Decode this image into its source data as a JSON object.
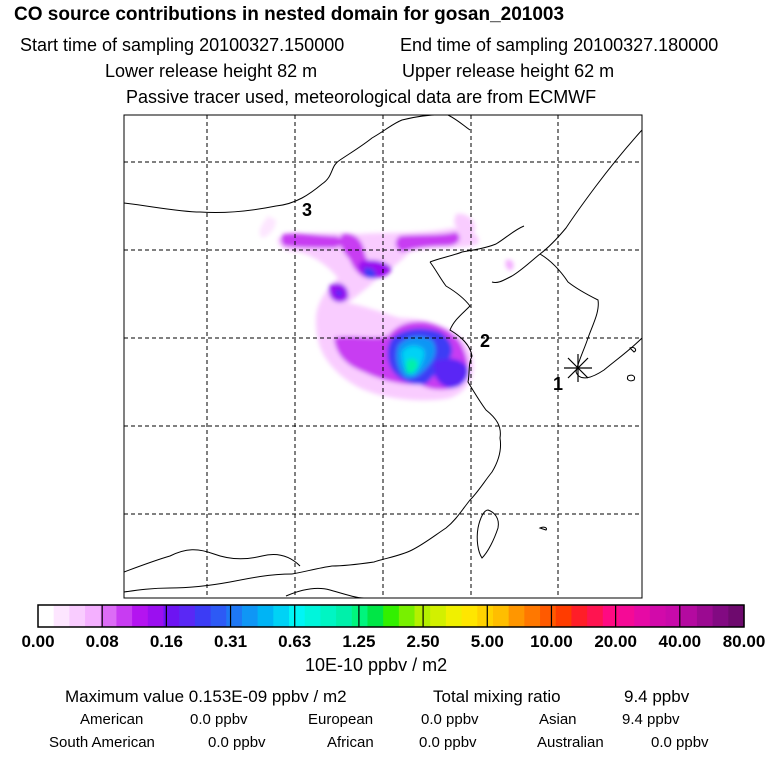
{
  "header": {
    "title": "CO  source contributions in nested domain for gosan_201003",
    "start_label": "Start time of sampling 20100327.150000",
    "end_label": "End time of sampling 20100327.180000",
    "lower_label": "Lower release height   82 m",
    "upper_label": "Upper release height   62 m",
    "tracer_label": "Passive tracer used, meteorological data are from ECMWF"
  },
  "map": {
    "markers": [
      {
        "label": "1"
      },
      {
        "label": "2"
      },
      {
        "label": "3"
      }
    ],
    "receptor_icon": "asterisk-icon"
  },
  "colorbar": {
    "ticks": [
      "0.00",
      "0.08",
      "0.16",
      "0.31",
      "0.63",
      "1.25",
      "2.50",
      "5.00",
      "10.00",
      "20.00",
      "40.00",
      "80.00"
    ],
    "unit": "10E-10 ppbv / m2",
    "colors": [
      "#ffffff",
      "#fde6ff",
      "#f9ccff",
      "#f4b0ff",
      "#dc6cf6",
      "#c83cf2",
      "#b414f0",
      "#9b0ff0",
      "#6d14f2",
      "#5a28f5",
      "#3c3cf5",
      "#2d5af5",
      "#1e78f5",
      "#0f96f5",
      "#00b4f5",
      "#00d2f5",
      "#00f5f5",
      "#00f5dc",
      "#00f5c3",
      "#00f0aa",
      "#00f57d",
      "#00e646",
      "#32f000",
      "#78f000",
      "#b4f000",
      "#d2f000",
      "#f0f000",
      "#ffe600",
      "#ffd200",
      "#ffbe00",
      "#ff9600",
      "#ff7800",
      "#ff5a00",
      "#ff3c00",
      "#ff1e28",
      "#ff1450",
      "#ff0a82",
      "#f50a96",
      "#e60aa5",
      "#d20aaa",
      "#c80aaa",
      "#b40aa0",
      "#9b0a91",
      "#820a82",
      "#6e0a6e"
    ]
  },
  "footer": {
    "max_label": "Maximum value  0.153E-09 ppbv / m2",
    "total_label": "Total mixing ratio",
    "total_value": "9.4 ppbv",
    "regions": [
      {
        "name": "American",
        "value": "0.0 ppbv"
      },
      {
        "name": "European",
        "value": "0.0 ppbv"
      },
      {
        "name": "Asian",
        "value": "9.4 ppbv"
      },
      {
        "name": "South American",
        "value": "0.0 ppbv"
      },
      {
        "name": "African",
        "value": "0.0 ppbv"
      },
      {
        "name": "Australian",
        "value": "0.0 ppbv"
      }
    ]
  }
}
